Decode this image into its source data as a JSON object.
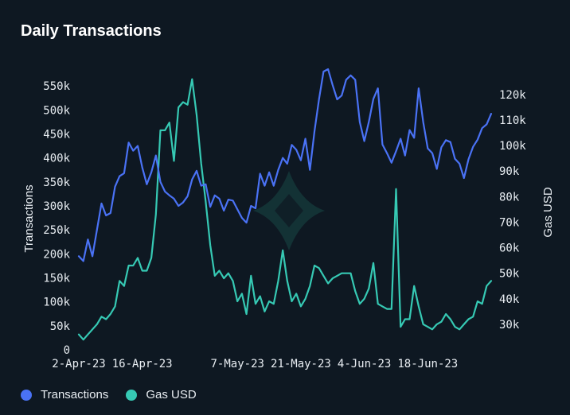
{
  "chart_data": {
    "type": "line",
    "title": "Daily Transactions",
    "ylabel_left": "Transactions",
    "ylabel_right": "Gas USD",
    "ylim_left": [
      0,
      580000
    ],
    "ylim_right": [
      20000,
      129000
    ],
    "y_ticks_left": [
      "0",
      "50k",
      "100k",
      "150k",
      "200k",
      "250k",
      "300k",
      "350k",
      "400k",
      "450k",
      "500k",
      "550k"
    ],
    "y_ticks_right": [
      "30k",
      "40k",
      "50k",
      "60k",
      "70k",
      "80k",
      "90k",
      "100k",
      "110k",
      "120k"
    ],
    "x_tick_labels": [
      "2-Apr-23",
      "16-Apr-23",
      "7-May-23",
      "21-May-23",
      "4-Jun-23",
      "18-Jun-23"
    ],
    "x_tick_positions": [
      0,
      14,
      35,
      49,
      63,
      77
    ],
    "x": [
      "2023-04-02",
      "2023-04-03",
      "2023-04-04",
      "2023-04-05",
      "2023-04-06",
      "2023-04-07",
      "2023-04-08",
      "2023-04-09",
      "2023-04-10",
      "2023-04-11",
      "2023-04-12",
      "2023-04-13",
      "2023-04-14",
      "2023-04-15",
      "2023-04-16",
      "2023-04-17",
      "2023-04-18",
      "2023-04-19",
      "2023-04-20",
      "2023-04-21",
      "2023-04-22",
      "2023-04-23",
      "2023-04-24",
      "2023-04-25",
      "2023-04-26",
      "2023-04-27",
      "2023-04-28",
      "2023-04-29",
      "2023-04-30",
      "2023-05-01",
      "2023-05-02",
      "2023-05-03",
      "2023-05-04",
      "2023-05-05",
      "2023-05-06",
      "2023-05-07",
      "2023-05-08",
      "2023-05-09",
      "2023-05-10",
      "2023-05-11",
      "2023-05-12",
      "2023-05-13",
      "2023-05-14",
      "2023-05-15",
      "2023-05-16",
      "2023-05-17",
      "2023-05-18",
      "2023-05-19",
      "2023-05-20",
      "2023-05-21",
      "2023-05-22",
      "2023-05-23",
      "2023-05-24",
      "2023-05-25",
      "2023-05-26",
      "2023-05-27",
      "2023-05-28",
      "2023-05-29",
      "2023-05-30",
      "2023-05-31",
      "2023-06-01",
      "2023-06-02",
      "2023-06-03",
      "2023-06-04",
      "2023-06-05",
      "2023-06-06",
      "2023-06-07",
      "2023-06-08",
      "2023-06-09",
      "2023-06-10",
      "2023-06-11",
      "2023-06-12",
      "2023-06-13",
      "2023-06-14",
      "2023-06-15",
      "2023-06-16",
      "2023-06-17",
      "2023-06-18",
      "2023-06-19",
      "2023-06-20",
      "2023-06-21",
      "2023-06-22",
      "2023-06-23",
      "2023-06-24",
      "2023-06-25",
      "2023-06-26",
      "2023-06-27",
      "2023-06-28",
      "2023-06-29",
      "2023-06-30",
      "2023-07-01",
      "2023-07-02"
    ],
    "series": [
      {
        "name": "Transactions",
        "axis": "left",
        "color": "#4a72f5",
        "values": [
          195000,
          185000,
          230000,
          195000,
          250000,
          305000,
          280000,
          285000,
          340000,
          362000,
          368000,
          432000,
          415000,
          425000,
          380000,
          345000,
          370000,
          405000,
          350000,
          330000,
          322000,
          315000,
          300000,
          307000,
          320000,
          355000,
          373000,
          342000,
          345000,
          298000,
          322000,
          315000,
          290000,
          313000,
          311000,
          293000,
          275000,
          265000,
          300000,
          295000,
          367000,
          342000,
          370000,
          342000,
          375000,
          400000,
          388000,
          427000,
          417000,
          395000,
          440000,
          375000,
          455000,
          522000,
          580000,
          585000,
          552000,
          522000,
          530000,
          563000,
          572000,
          563000,
          475000,
          435000,
          475000,
          523000,
          545000,
          428000,
          410000,
          390000,
          414000,
          440000,
          405000,
          458000,
          442000,
          545000,
          475000,
          420000,
          410000,
          377000,
          422000,
          437000,
          433000,
          398000,
          388000,
          358000,
          397000,
          423000,
          438000,
          462000,
          470000,
          492000
        ]
      },
      {
        "name": "Gas USD",
        "axis": "right",
        "color": "#36c9b4",
        "values": [
          26000,
          24000,
          26000,
          28000,
          30000,
          33000,
          32000,
          34000,
          37000,
          47000,
          45000,
          53000,
          53000,
          56000,
          51000,
          51000,
          56000,
          73000,
          106000,
          106000,
          109000,
          94000,
          115000,
          117000,
          116000,
          126000,
          112000,
          93000,
          78000,
          61000,
          49000,
          51000,
          48000,
          50000,
          47000,
          39000,
          42000,
          34000,
          49000,
          38000,
          41000,
          35000,
          39000,
          38000,
          47000,
          59000,
          47000,
          39000,
          42000,
          37000,
          40000,
          45000,
          53000,
          52000,
          49000,
          46000,
          48000,
          49000,
          50000,
          50000,
          50000,
          43000,
          38000,
          40000,
          44000,
          54000,
          38000,
          37000,
          36000,
          36000,
          83000,
          29000,
          32000,
          32000,
          45000,
          37000,
          30000,
          29000,
          28000,
          30000,
          31000,
          34000,
          32000,
          29000,
          28000,
          30000,
          32000,
          33000,
          39000,
          38000,
          45000,
          47000
        ]
      }
    ],
    "grid": false,
    "legend_placement": "bottom-left",
    "watermark": "star-logo"
  }
}
